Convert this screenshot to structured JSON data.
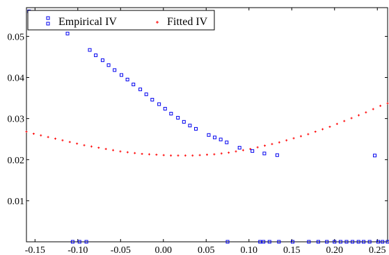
{
  "chart_data": {
    "type": "scatter",
    "title": "",
    "xlabel": "",
    "ylabel": "",
    "xlim": [
      -0.16,
      0.262
    ],
    "ylim": [
      0.0,
      0.057
    ],
    "x_ticks": [
      -0.15,
      -0.1,
      -0.05,
      0.0,
      0.05,
      0.1,
      0.15,
      0.2,
      0.25
    ],
    "x_tick_labels": [
      "-0.15",
      "-0.10",
      "-0.05",
      "0.00",
      "0.05",
      "0.10",
      "0.15",
      "0.20",
      "0.25"
    ],
    "y_ticks": [
      0.01,
      0.02,
      0.03,
      0.04,
      0.05
    ],
    "y_tick_labels": [
      "0.01",
      "0.02",
      "0.03",
      "0.04",
      "0.05"
    ],
    "grid": false,
    "legend_position": "top-left",
    "series": [
      {
        "name": "Empirical IV",
        "marker": "open-square",
        "color": "#0000ee",
        "points": [
          [
            -0.157,
            0.0561
          ],
          [
            -0.15,
            0.0547
          ],
          [
            -0.14,
            0.0543
          ],
          [
            -0.128,
            0.0528
          ],
          [
            -0.112,
            0.0507
          ],
          [
            -0.086,
            0.0467
          ],
          [
            -0.079,
            0.0454
          ],
          [
            -0.071,
            0.0442
          ],
          [
            -0.064,
            0.043
          ],
          [
            -0.057,
            0.0418
          ],
          [
            -0.049,
            0.0406
          ],
          [
            -0.042,
            0.0395
          ],
          [
            -0.035,
            0.0383
          ],
          [
            -0.027,
            0.0371
          ],
          [
            -0.02,
            0.0359
          ],
          [
            -0.013,
            0.0346
          ],
          [
            -0.005,
            0.0335
          ],
          [
            0.002,
            0.0324
          ],
          [
            0.009,
            0.0312
          ],
          [
            0.017,
            0.0302
          ],
          [
            0.024,
            0.0292
          ],
          [
            0.031,
            0.0283
          ],
          [
            0.038,
            0.0275
          ],
          [
            0.053,
            0.026
          ],
          [
            0.06,
            0.0254
          ],
          [
            0.067,
            0.0249
          ],
          [
            0.074,
            0.0242
          ],
          [
            0.089,
            0.0229
          ],
          [
            0.104,
            0.0221
          ],
          [
            0.118,
            0.0215
          ],
          [
            0.133,
            0.0211
          ],
          [
            0.247,
            0.021
          ],
          [
            -0.106,
            0.0
          ],
          [
            -0.098,
            0.0
          ],
          [
            -0.09,
            0.0
          ],
          [
            0.075,
            0.0
          ],
          [
            0.113,
            0.0
          ],
          [
            0.117,
            0.0
          ],
          [
            0.124,
            0.0
          ],
          [
            0.135,
            0.0
          ],
          [
            0.151,
            0.0
          ],
          [
            0.17,
            0.0
          ],
          [
            0.181,
            0.0
          ],
          [
            0.191,
            0.0
          ],
          [
            0.2,
            0.0
          ],
          [
            0.207,
            0.0
          ],
          [
            0.214,
            0.0
          ],
          [
            0.221,
            0.0
          ],
          [
            0.228,
            0.0
          ],
          [
            0.234,
            0.0
          ],
          [
            0.241,
            0.0
          ],
          [
            0.251,
            0.0
          ],
          [
            0.256,
            0.0
          ],
          [
            0.262,
            0.0
          ]
        ]
      },
      {
        "name": "Fitted IV",
        "marker": "plus",
        "color": "#ff0000",
        "x_start": -0.16,
        "x_end": 0.262,
        "y": [
          0.0268,
          0.0263,
          0.0259,
          0.0255,
          0.0251,
          0.0247,
          0.0243,
          0.0239,
          0.0235,
          0.0232,
          0.0229,
          0.0226,
          0.0223,
          0.022,
          0.0218,
          0.0216,
          0.0214,
          0.0213,
          0.0212,
          0.0211,
          0.021,
          0.021,
          0.021,
          0.021,
          0.0211,
          0.0212,
          0.0213,
          0.0215,
          0.0217,
          0.022,
          0.0223,
          0.0226,
          0.023,
          0.0234,
          0.0238,
          0.0242,
          0.0247,
          0.0252,
          0.0257,
          0.0262,
          0.0268,
          0.0274,
          0.028,
          0.0287,
          0.0294,
          0.0301,
          0.0308,
          0.0315,
          0.0323,
          0.0331,
          0.0337
        ]
      }
    ]
  }
}
